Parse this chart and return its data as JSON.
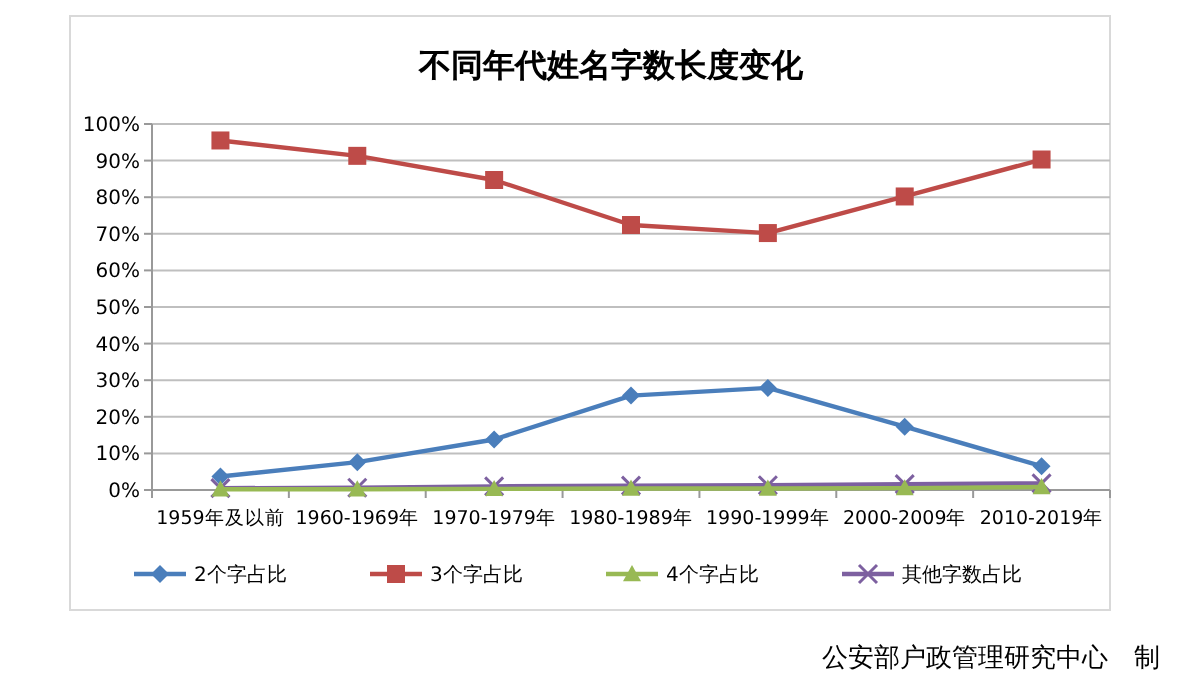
{
  "chart_data": {
    "type": "line",
    "title": "不同年代姓名字数长度变化",
    "categories": [
      "1959年及以前",
      "1960-1969年",
      "1970-1979年",
      "1980-1989年",
      "1990-1999年",
      "2000-2009年",
      "2010-2019年"
    ],
    "series": [
      {
        "name": "2个字占比",
        "color": "#4a7ebb",
        "marker": "diamond",
        "values": [
          3.7,
          7.6,
          13.8,
          25.8,
          27.9,
          17.3,
          6.5
        ]
      },
      {
        "name": "3个字占比",
        "color": "#be4b48",
        "marker": "square",
        "values": [
          95.5,
          91.3,
          84.7,
          72.4,
          70.2,
          80.2,
          90.3
        ]
      },
      {
        "name": "4个字占比",
        "color": "#98b954",
        "marker": "triangle",
        "values": [
          0.2,
          0.2,
          0.3,
          0.4,
          0.4,
          0.5,
          0.8
        ]
      },
      {
        "name": "其他字数占比",
        "color": "#7d60a0",
        "marker": "cross",
        "values": [
          0.5,
          0.6,
          1.0,
          1.2,
          1.3,
          1.6,
          1.8
        ]
      }
    ],
    "ylim": [
      0,
      100
    ],
    "yticks": [
      {
        "value": 0,
        "label": "0%"
      },
      {
        "value": 10,
        "label": "10%"
      },
      {
        "value": 20,
        "label": "20%"
      },
      {
        "value": 30,
        "label": "30%"
      },
      {
        "value": 40,
        "label": "40%"
      },
      {
        "value": 50,
        "label": "50%"
      },
      {
        "value": 60,
        "label": "60%"
      },
      {
        "value": 70,
        "label": "70%"
      },
      {
        "value": 80,
        "label": "80%"
      },
      {
        "value": 90,
        "label": "90%"
      },
      {
        "value": 100,
        "label": "100%"
      }
    ],
    "grid": "y",
    "legend": "bottom",
    "line_style": "solid",
    "annotations": [
      "公安部户政管理研究中心　制"
    ]
  }
}
